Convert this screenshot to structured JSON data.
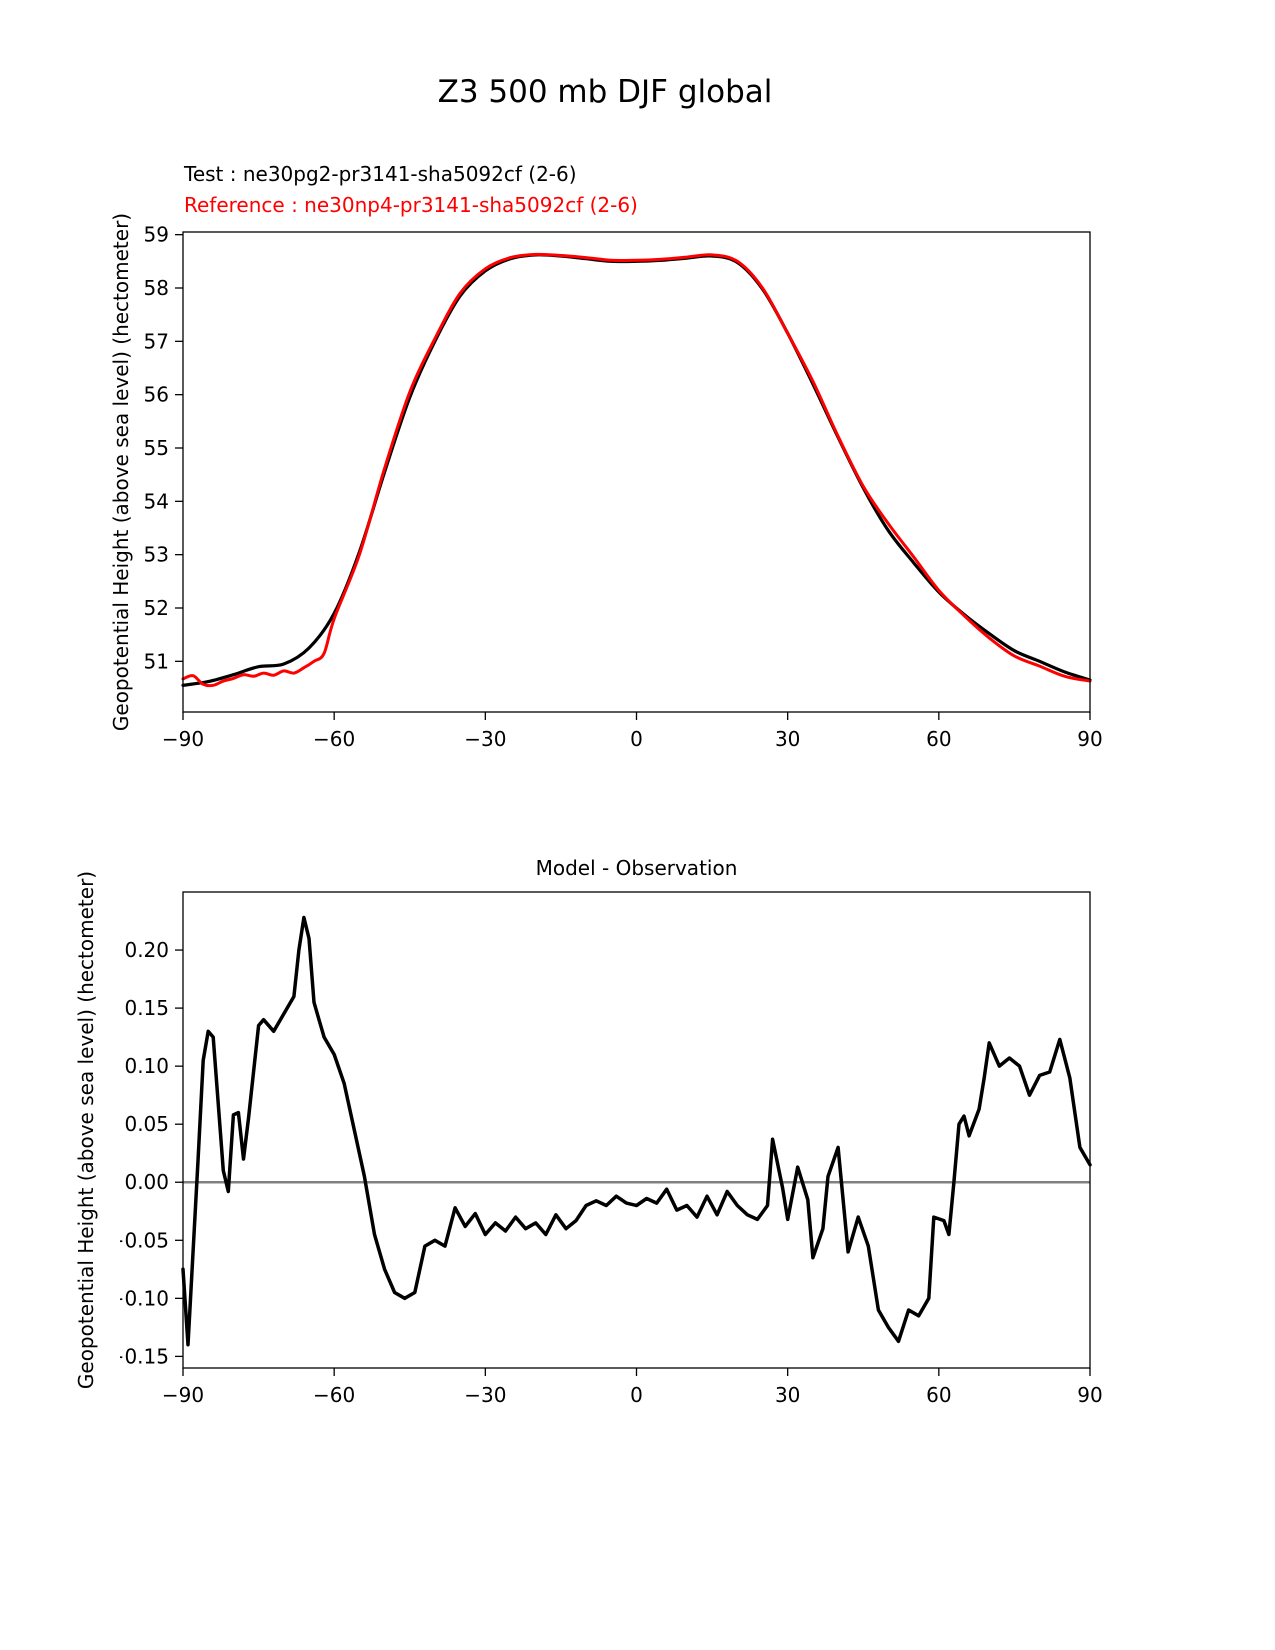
{
  "chart_data": [
    {
      "type": "line",
      "title": "Z3 500 mb DJF global",
      "xlabel": "",
      "ylabel": "Geopotential Height (above sea level) (hectometer)",
      "xlim": [
        -90,
        90
      ],
      "ylim": [
        50.05,
        59.05
      ],
      "xticks": [
        -90,
        -60,
        -30,
        0,
        30,
        60,
        90
      ],
      "xtick_labels": [
        "−90",
        "−60",
        "−30",
        "0",
        "30",
        "60",
        "90"
      ],
      "yticks": [
        51,
        52,
        53,
        54,
        55,
        56,
        57,
        58,
        59
      ],
      "ytick_labels": [
        "51",
        "52",
        "53",
        "54",
        "55",
        "56",
        "57",
        "58",
        "59"
      ],
      "grid": false,
      "legend_position": "above-left",
      "legend": [
        {
          "label": "Test : ne30pg2-pr3141-sha5092cf (2-6)",
          "color": "#000000"
        },
        {
          "label": "Reference : ne30np4-pr3141-sha5092cf (2-6)",
          "color": "#ff0000"
        }
      ],
      "series": [
        {
          "name": "Test",
          "color": "#000000",
          "width": 3.2,
          "x": [
            -90,
            -85,
            -80,
            -75,
            -70,
            -65,
            -60,
            -55,
            -50,
            -45,
            -40,
            -35,
            -30,
            -25,
            -20,
            -15,
            -10,
            -5,
            0,
            5,
            10,
            15,
            20,
            25,
            30,
            35,
            40,
            45,
            50,
            55,
            60,
            65,
            70,
            75,
            80,
            85,
            90
          ],
          "y": [
            50.55,
            50.62,
            50.75,
            50.9,
            50.95,
            51.25,
            51.9,
            53.05,
            54.55,
            55.95,
            57.0,
            57.85,
            58.32,
            58.55,
            58.62,
            58.6,
            58.55,
            58.5,
            58.5,
            58.52,
            58.56,
            58.6,
            58.48,
            57.98,
            57.15,
            56.2,
            55.2,
            54.25,
            53.45,
            52.85,
            52.3,
            51.88,
            51.52,
            51.2,
            51.0,
            50.8,
            50.65
          ]
        },
        {
          "name": "Reference",
          "color": "#ff0000",
          "width": 3.0,
          "x": [
            -90,
            -88,
            -86,
            -84,
            -82,
            -80,
            -78,
            -76,
            -74,
            -72,
            -70,
            -68,
            -66,
            -64,
            -62,
            -60,
            -55,
            -50,
            -45,
            -40,
            -35,
            -30,
            -25,
            -20,
            -15,
            -10,
            -5,
            0,
            5,
            10,
            15,
            20,
            25,
            30,
            35,
            40,
            45,
            50,
            55,
            60,
            65,
            70,
            75,
            80,
            85,
            90
          ],
          "y": [
            50.67,
            50.73,
            50.57,
            50.55,
            50.63,
            50.68,
            50.75,
            50.72,
            50.78,
            50.74,
            50.82,
            50.78,
            50.88,
            51.0,
            51.15,
            51.8,
            53.0,
            54.62,
            56.05,
            57.05,
            57.9,
            58.36,
            58.57,
            58.63,
            58.61,
            58.57,
            58.52,
            58.52,
            58.54,
            58.58,
            58.62,
            58.5,
            58.0,
            57.15,
            56.25,
            55.22,
            54.28,
            53.58,
            52.96,
            52.33,
            51.86,
            51.44,
            51.1,
            50.91,
            50.72,
            50.63
          ]
        }
      ]
    },
    {
      "type": "line",
      "title": "Model - Observation",
      "xlabel": "",
      "ylabel": "Geopotential Height (above sea level) (hectometer)",
      "xlim": [
        -90,
        90
      ],
      "ylim": [
        -0.16,
        0.25
      ],
      "xticks": [
        -90,
        -60,
        -30,
        0,
        30,
        60,
        90
      ],
      "xtick_labels": [
        "−90",
        "−60",
        "−30",
        "0",
        "30",
        "60",
        "90"
      ],
      "yticks": [
        -0.15,
        -0.1,
        -0.05,
        0.0,
        0.05,
        0.1,
        0.15,
        0.2
      ],
      "ytick_labels": [
        "−0.15",
        "−0.10",
        "−0.05",
        "0.00",
        "0.05",
        "0.10",
        "0.15",
        "0.20"
      ],
      "grid": false,
      "zero_line": true,
      "zero_line_color": "#808080",
      "series": [
        {
          "name": "Model minus Observation",
          "color": "#000000",
          "width": 3.5,
          "x": [
            -90,
            -89,
            -87,
            -86,
            -85,
            -84,
            -82,
            -81,
            -80,
            -79,
            -78,
            -77,
            -75,
            -74,
            -72,
            -70,
            -68,
            -67,
            -66,
            -65,
            -64,
            -63,
            -62,
            -60,
            -58,
            -56,
            -54,
            -52,
            -50,
            -48,
            -46,
            -44,
            -42,
            -40,
            -38,
            -36,
            -34,
            -32,
            -30,
            -28,
            -26,
            -24,
            -22,
            -20,
            -18,
            -16,
            -14,
            -12,
            -10,
            -8,
            -6,
            -4,
            -2,
            0,
            2,
            4,
            6,
            8,
            10,
            12,
            14,
            16,
            18,
            20,
            22,
            24,
            26,
            27,
            29,
            30,
            32,
            34,
            35,
            37,
            38,
            40,
            42,
            44,
            46,
            48,
            50,
            52,
            54,
            56,
            58,
            59,
            61,
            62,
            63,
            64,
            65,
            66,
            68,
            69,
            70,
            72,
            74,
            76,
            78,
            80,
            82,
            84,
            86,
            88,
            90
          ],
          "y": [
            -0.075,
            -0.14,
            0.02,
            0.105,
            0.13,
            0.125,
            0.01,
            -0.008,
            0.058,
            0.06,
            0.02,
            0.055,
            0.135,
            0.14,
            0.13,
            0.145,
            0.16,
            0.2,
            0.228,
            0.21,
            0.155,
            0.14,
            0.125,
            0.11,
            0.085,
            0.045,
            0.005,
            -0.045,
            -0.075,
            -0.095,
            -0.1,
            -0.095,
            -0.055,
            -0.05,
            -0.055,
            -0.022,
            -0.038,
            -0.027,
            -0.045,
            -0.035,
            -0.042,
            -0.03,
            -0.04,
            -0.035,
            -0.045,
            -0.028,
            -0.04,
            -0.033,
            -0.02,
            -0.016,
            -0.02,
            -0.012,
            -0.018,
            -0.02,
            -0.014,
            -0.018,
            -0.006,
            -0.024,
            -0.02,
            -0.03,
            -0.012,
            -0.028,
            -0.008,
            -0.02,
            -0.028,
            -0.032,
            -0.02,
            0.037,
            -0.005,
            -0.032,
            0.013,
            -0.015,
            -0.065,
            -0.04,
            0.005,
            0.03,
            -0.06,
            -0.03,
            -0.055,
            -0.11,
            -0.125,
            -0.137,
            -0.11,
            -0.115,
            -0.1,
            -0.03,
            -0.033,
            -0.045,
            0.0,
            0.05,
            0.057,
            0.04,
            0.063,
            0.09,
            0.12,
            0.1,
            0.107,
            0.1,
            0.075,
            0.092,
            0.095,
            0.123,
            0.09,
            0.03,
            0.015
          ]
        }
      ]
    }
  ]
}
